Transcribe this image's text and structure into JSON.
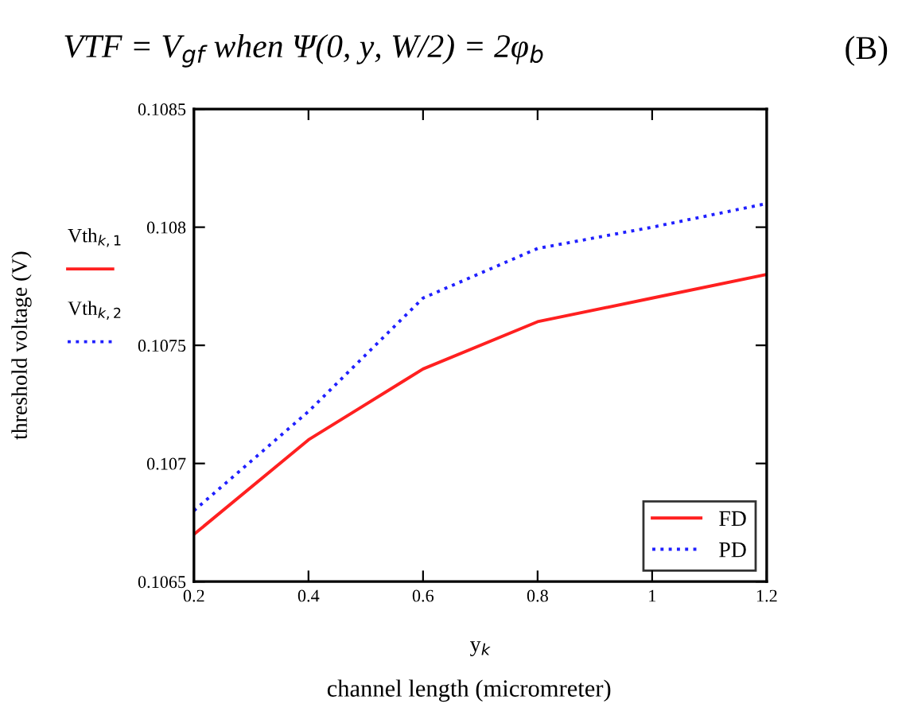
{
  "chart_data": {
    "type": "line",
    "title": "VTF = V$_{gf}$ when Ψ(0, y, W/2) = 2φ$_{b}$",
    "xlabel": "y$_{k}$",
    "ylabel": "threshold voltage (V)",
    "annotations": [
      "(B)",
      "channel length (micromreter)",
      "Vth$_{k,1}$",
      "Vth$_{k,2}$"
    ],
    "x": [
      0.2,
      0.4,
      0.6,
      0.8,
      1.0,
      1.2
    ],
    "series": [
      {
        "name": "FD",
        "color": "#ff2020",
        "line_style": "solid",
        "values": [
          0.1067,
          0.1071,
          0.1074,
          0.1076,
          0.1077,
          0.1078
        ]
      },
      {
        "name": "PD",
        "color": "#2020ff",
        "line_style": "dotted",
        "values": [
          0.1068,
          0.10722,
          0.1077,
          0.10791,
          0.108,
          0.1081
        ]
      }
    ],
    "xlim": [
      0.2,
      1.2
    ],
    "xticks": [
      0.2,
      0.4,
      0.6,
      0.8,
      1,
      1.2
    ],
    "ylim": [
      0.1065,
      0.1085
    ],
    "yticks": [
      0.1065,
      0.107,
      0.1075,
      0.108,
      0.1085
    ],
    "grid": false,
    "legend": "bottom right",
    "marker": "none"
  }
}
